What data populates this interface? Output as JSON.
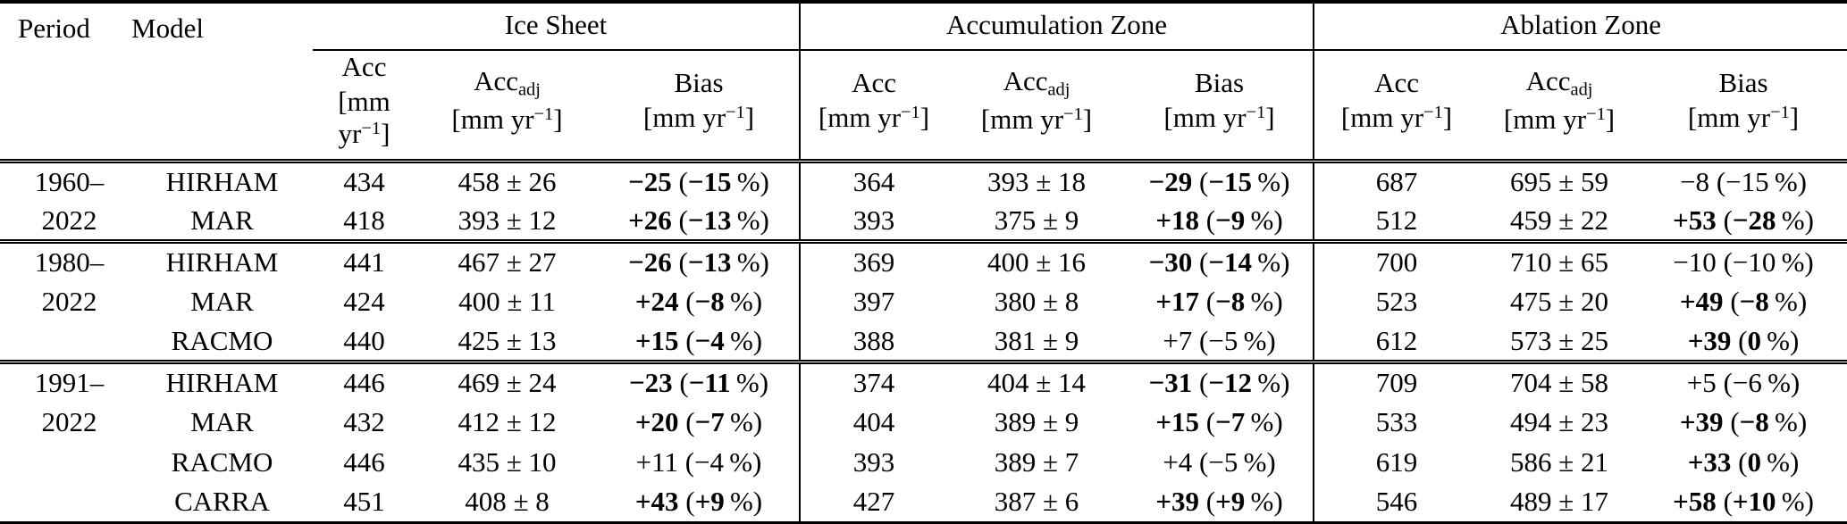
{
  "table": {
    "header": {
      "period": "Period",
      "model": "Model",
      "groups": [
        "Ice Sheet",
        "Accumulation Zone",
        "Ablation Zone"
      ],
      "columns": [
        {
          "key": "acc",
          "name": "Acc",
          "sub": ""
        },
        {
          "key": "acc-adj",
          "name": "Acc",
          "sub": "adj"
        },
        {
          "key": "bias",
          "name": "Bias",
          "sub": ""
        }
      ],
      "unit": {
        "pre": "[mm yr",
        "sup": "−1",
        "post": "]"
      }
    },
    "blocks": [
      {
        "rows": [
          {
            "period": "1960–",
            "model": "HIRHAM",
            "ice_sheet": {
              "acc": "434",
              "adj": "458 ± 26",
              "bias": {
                "value": "−25",
                "percent": "−15",
                "bold": true
              }
            },
            "accumulation_zone": {
              "acc": "364",
              "adj": "393 ± 18",
              "bias": {
                "value": "−29",
                "percent": "−15",
                "bold": true
              }
            },
            "ablation_zone": {
              "acc": "687",
              "adj": "695 ± 59",
              "bias": {
                "value": "−8",
                "percent": "−15",
                "bold": false
              }
            }
          },
          {
            "period": "2022",
            "model": "MAR",
            "ice_sheet": {
              "acc": "418",
              "adj": "393 ± 12",
              "bias": {
                "value": "+26",
                "percent": "−13",
                "bold": true
              }
            },
            "accumulation_zone": {
              "acc": "393",
              "adj": "375 ± 9",
              "bias": {
                "value": "+18",
                "percent": "−9",
                "bold": true
              }
            },
            "ablation_zone": {
              "acc": "512",
              "adj": "459 ± 22",
              "bias": {
                "value": "+53",
                "percent": "−28",
                "bold": true
              }
            }
          }
        ]
      },
      {
        "rows": [
          {
            "period": "1980–",
            "model": "HIRHAM",
            "ice_sheet": {
              "acc": "441",
              "adj": "467 ± 27",
              "bias": {
                "value": "−26",
                "percent": "−13",
                "bold": true
              }
            },
            "accumulation_zone": {
              "acc": "369",
              "adj": "400 ± 16",
              "bias": {
                "value": "−30",
                "percent": "−14",
                "bold": true
              }
            },
            "ablation_zone": {
              "acc": "700",
              "adj": "710 ± 65",
              "bias": {
                "value": "−10",
                "percent": "−10",
                "bold": false
              }
            }
          },
          {
            "period": "2022",
            "model": "MAR",
            "ice_sheet": {
              "acc": "424",
              "adj": "400 ± 11",
              "bias": {
                "value": "+24",
                "percent": "−8",
                "bold": true
              }
            },
            "accumulation_zone": {
              "acc": "397",
              "adj": "380 ± 8",
              "bias": {
                "value": "+17",
                "percent": "−8",
                "bold": true
              }
            },
            "ablation_zone": {
              "acc": "523",
              "adj": "475 ± 20",
              "bias": {
                "value": "+49",
                "percent": "−8",
                "bold": true
              }
            }
          },
          {
            "period": "",
            "model": "RACMO",
            "ice_sheet": {
              "acc": "440",
              "adj": "425 ± 13",
              "bias": {
                "value": "+15",
                "percent": "−4",
                "bold": true
              }
            },
            "accumulation_zone": {
              "acc": "388",
              "adj": "381 ± 9",
              "bias": {
                "value": "+7",
                "percent": "−5",
                "bold": false
              }
            },
            "ablation_zone": {
              "acc": "612",
              "adj": "573 ± 25",
              "bias": {
                "value": "+39",
                "percent": "0",
                "bold": true
              }
            }
          }
        ]
      },
      {
        "rows": [
          {
            "period": "1991–",
            "model": "HIRHAM",
            "ice_sheet": {
              "acc": "446",
              "adj": "469 ± 24",
              "bias": {
                "value": "−23",
                "percent": "−11",
                "bold": true
              }
            },
            "accumulation_zone": {
              "acc": "374",
              "adj": "404 ± 14",
              "bias": {
                "value": "−31",
                "percent": "−12",
                "bold": true
              }
            },
            "ablation_zone": {
              "acc": "709",
              "adj": "704 ± 58",
              "bias": {
                "value": "+5",
                "percent": "−6",
                "bold": false
              }
            }
          },
          {
            "period": "2022",
            "model": "MAR",
            "ice_sheet": {
              "acc": "432",
              "adj": "412 ± 12",
              "bias": {
                "value": "+20",
                "percent": "−7",
                "bold": true
              }
            },
            "accumulation_zone": {
              "acc": "404",
              "adj": "389 ± 9",
              "bias": {
                "value": "+15",
                "percent": "−7",
                "bold": true
              }
            },
            "ablation_zone": {
              "acc": "533",
              "adj": "494 ± 23",
              "bias": {
                "value": "+39",
                "percent": "−8",
                "bold": true
              }
            }
          },
          {
            "period": "",
            "model": "RACMO",
            "ice_sheet": {
              "acc": "446",
              "adj": "435 ± 10",
              "bias": {
                "value": "+11",
                "percent": "−4",
                "bold": false
              }
            },
            "accumulation_zone": {
              "acc": "393",
              "adj": "389 ± 7",
              "bias": {
                "value": "+4",
                "percent": "−5",
                "bold": false
              }
            },
            "ablation_zone": {
              "acc": "619",
              "adj": "586 ± 21",
              "bias": {
                "value": "+33",
                "percent": "0",
                "bold": true
              }
            }
          },
          {
            "period": "",
            "model": "CARRA",
            "ice_sheet": {
              "acc": "451",
              "adj": "408 ± 8",
              "bias": {
                "value": "+43",
                "percent": "+9",
                "bold": true
              }
            },
            "accumulation_zone": {
              "acc": "427",
              "adj": "387 ± 6",
              "bias": {
                "value": "+39",
                "percent": "+9",
                "bold": true
              }
            },
            "ablation_zone": {
              "acc": "546",
              "adj": "489 ± 17",
              "bias": {
                "value": "+58",
                "percent": "+10",
                "bold": true
              }
            }
          }
        ]
      }
    ]
  }
}
